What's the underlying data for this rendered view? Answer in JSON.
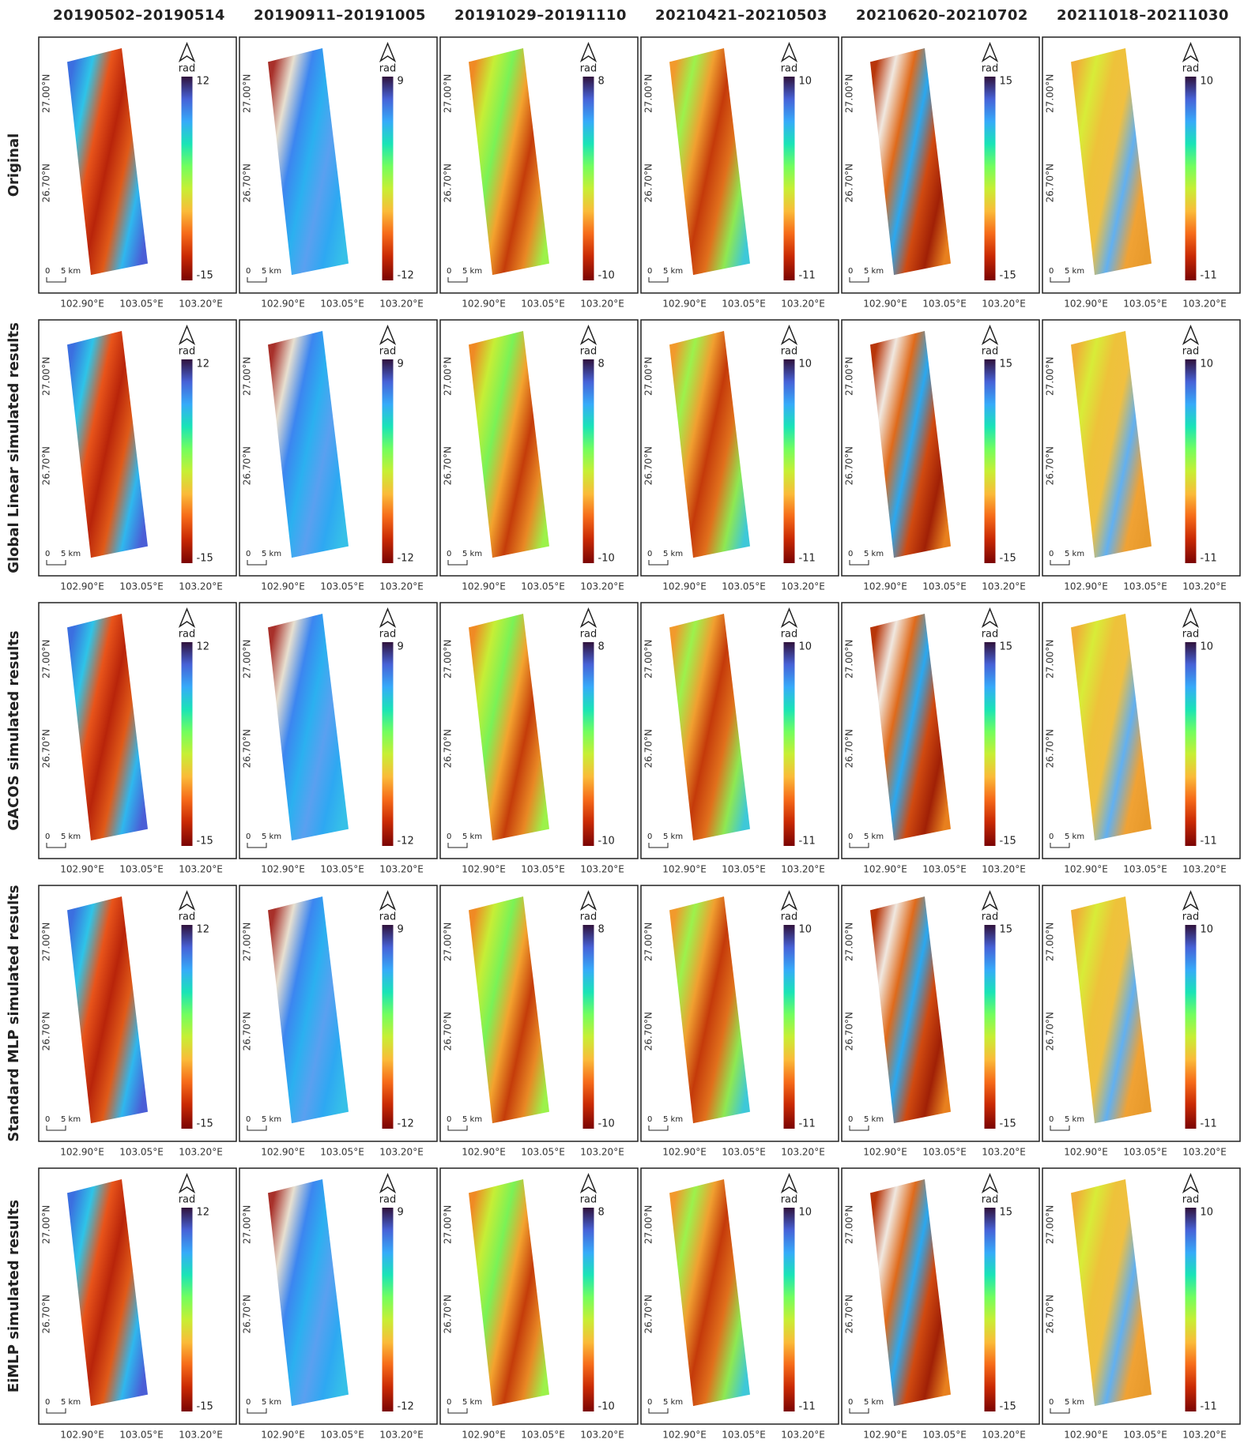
{
  "column_titles": [
    "20190502–20190514",
    "20190911–20191005",
    "20191029–20191110",
    "20210421–20210503",
    "20210620–20210702",
    "20211018–20211030"
  ],
  "row_labels": [
    "Original",
    "Global Linear simulated results",
    "GACOS simulated results",
    "Standard MLP simulated results",
    "EiMLP simulated results"
  ],
  "colorbars": [
    {
      "max": 12,
      "min": -15
    },
    {
      "max": 9,
      "min": -12
    },
    {
      "max": 8,
      "min": -10
    },
    {
      "max": 10,
      "min": -11
    },
    {
      "max": 15,
      "min": -15
    },
    {
      "max": 10,
      "min": -11
    }
  ],
  "unit": "rad",
  "scale_bar": {
    "zero": "0",
    "length": "5 km"
  },
  "lat_labels": [
    "27.00°N",
    "26.70°N"
  ],
  "lon_labels": [
    "102.90°E",
    "103.05°E",
    "103.20°E"
  ]
}
